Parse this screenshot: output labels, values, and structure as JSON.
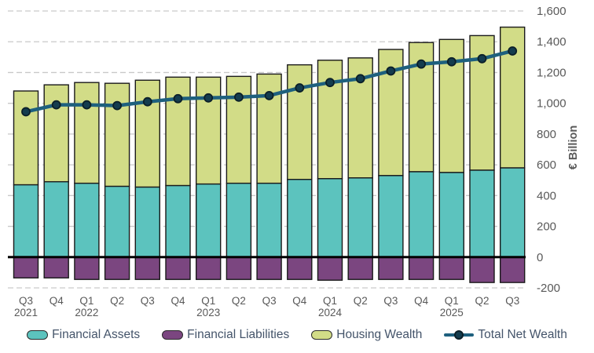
{
  "chart_data": {
    "type": "bar",
    "subtype": "stacked-bar-with-line",
    "title": "",
    "xlabel": "",
    "ylabel": "€ Billion",
    "ylim": [
      -200,
      1600
    ],
    "grid": {
      "show": true,
      "color": "#C9C9C9",
      "dash": "7 4"
    },
    "legend_position": "bottom",
    "y_axis": {
      "side": "right",
      "tick_values": [
        1600,
        1400,
        1200,
        1000,
        800,
        600,
        400,
        200,
        0,
        -200
      ],
      "tick_labels": [
        "1,600",
        "1,400",
        "1,200",
        "1,000",
        "800",
        "600",
        "400",
        "200",
        "0",
        "-200"
      ]
    },
    "categories": [
      {
        "q": "Q3",
        "year": "2021"
      },
      {
        "q": "Q4"
      },
      {
        "q": "Q1",
        "year": "2022"
      },
      {
        "q": "Q2"
      },
      {
        "q": "Q3"
      },
      {
        "q": "Q4"
      },
      {
        "q": "Q1",
        "year": "2023"
      },
      {
        "q": "Q2"
      },
      {
        "q": "Q3"
      },
      {
        "q": "Q4"
      },
      {
        "q": "Q1",
        "year": "2024"
      },
      {
        "q": "Q2"
      },
      {
        "q": "Q3"
      },
      {
        "q": "Q4"
      },
      {
        "q": "Q1",
        "year": "2025"
      },
      {
        "q": "Q2"
      },
      {
        "q": "Q3"
      }
    ],
    "series": [
      {
        "name": "Financial Assets",
        "type": "bar",
        "color": "#5CC3BE",
        "values": [
          470,
          490,
          480,
          460,
          455,
          465,
          475,
          480,
          480,
          505,
          510,
          515,
          530,
          555,
          550,
          565,
          580
        ]
      },
      {
        "name": "Financial Liabilities",
        "type": "bar",
        "color": "#7B4680",
        "values": [
          -135,
          -135,
          -145,
          -145,
          -145,
          -145,
          -145,
          -145,
          -145,
          -145,
          -150,
          -145,
          -145,
          -145,
          -145,
          -165,
          -165
        ]
      },
      {
        "name": "Housing Wealth",
        "type": "bar",
        "color": "#D2DC87",
        "values": [
          610,
          630,
          655,
          670,
          695,
          705,
          695,
          695,
          710,
          745,
          770,
          780,
          820,
          840,
          865,
          875,
          915
        ]
      },
      {
        "name": "Total Net Wealth",
        "type": "line",
        "color": "#1E607E",
        "dot_color": "#143C4E",
        "dot_stroke": "#0B1F29",
        "values": [
          945,
          990,
          990,
          985,
          1010,
          1030,
          1035,
          1040,
          1050,
          1100,
          1135,
          1160,
          1210,
          1255,
          1270,
          1290,
          1340
        ]
      }
    ],
    "styles": {
      "bar_stroke": "#1A1A1A",
      "zero_line_color": "#000000",
      "axis_text_color": "#595959",
      "legend_text_color": "#44546A"
    }
  }
}
